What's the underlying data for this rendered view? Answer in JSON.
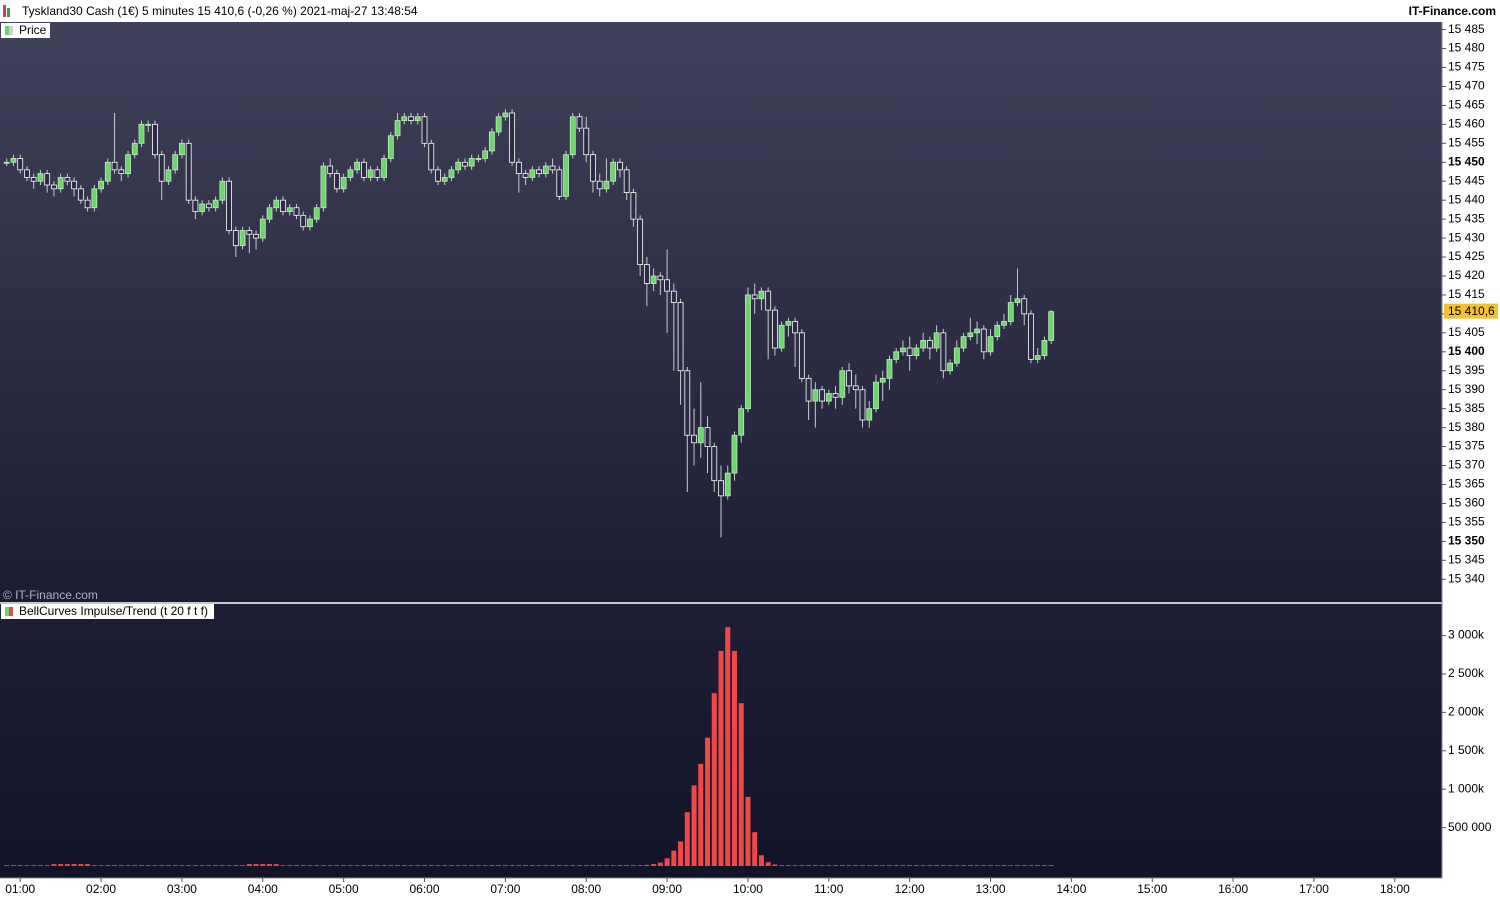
{
  "header": {
    "title": "Tyskland30 Cash (1€) 5 minutes 15 410,6 (-0,26 %) 2021-maj-27 13:48:54",
    "brand": "IT-Finance.com",
    "watermark": "© IT-Finance.com"
  },
  "chart_data": [
    {
      "type": "candlestick",
      "legend": "Price",
      "up_color": "#6fd36f",
      "down_color": "#ffffff",
      "wick_color": "#c8c8d2",
      "x": [
        50,
        55,
        60,
        65,
        70,
        75,
        80,
        85,
        90,
        95,
        100,
        105,
        110,
        115,
        120,
        125,
        130,
        135,
        140,
        145,
        150,
        155,
        160,
        165,
        170,
        175,
        180,
        185,
        190,
        195,
        200,
        205,
        210,
        215,
        220,
        225,
        230,
        235,
        240,
        245,
        250,
        255,
        260,
        265,
        270,
        275,
        280,
        285,
        290,
        295,
        300,
        305,
        310,
        315,
        320,
        325,
        330,
        335,
        340,
        345,
        350,
        355,
        360,
        365,
        370,
        375,
        380,
        385,
        390,
        395,
        400,
        405,
        410,
        415,
        420,
        425,
        430,
        435,
        440,
        445,
        450,
        455,
        460,
        465,
        470,
        475,
        480,
        485,
        490,
        495,
        500,
        505,
        510,
        515,
        520,
        525,
        530,
        535,
        540,
        545,
        550,
        555,
        560,
        565,
        570,
        575,
        580,
        585,
        590,
        595,
        600,
        605,
        610,
        615,
        620,
        625,
        630,
        635,
        640,
        645,
        650,
        655,
        660,
        665,
        670,
        675,
        680,
        685,
        690,
        695,
        700,
        705,
        710,
        715,
        720,
        725,
        730,
        735,
        740,
        745,
        750,
        755,
        760,
        765,
        770,
        775,
        780,
        785,
        790,
        795,
        800,
        805,
        810,
        815,
        820,
        825
      ],
      "open": [
        15450,
        15450,
        15451,
        15448,
        15446,
        15445,
        15447,
        15444,
        15443,
        15446,
        15445,
        15443,
        15440,
        15438,
        15443,
        15445,
        15450,
        15448,
        15447,
        15452,
        15455,
        15460,
        15460,
        15452,
        15445,
        15448,
        15452,
        15455,
        15440,
        15437,
        15439,
        15438,
        15440,
        15445,
        15432,
        15428,
        15432,
        15431,
        15430,
        15435,
        15438,
        15440,
        15437,
        15438,
        15436,
        15433,
        15435,
        15438,
        15449,
        15447,
        15443,
        15446,
        15448,
        15450,
        15446,
        15448,
        15446,
        15451,
        15457,
        15461,
        15462,
        15461,
        15462,
        15455,
        15448,
        15445,
        15446,
        15448,
        15450,
        15449,
        15451,
        15451,
        15453,
        15458,
        15462,
        15463,
        15450,
        15447,
        15446,
        15448,
        15447,
        15449,
        15448,
        15441,
        15452,
        15462,
        15459,
        15452,
        15445,
        15443,
        15445,
        15450,
        15448,
        15442,
        15435,
        15423,
        15418,
        15420,
        15419,
        15416,
        15413,
        15395,
        15378,
        15376,
        15380,
        15375,
        15366,
        15362,
        15368,
        15378,
        15385,
        15415,
        15414,
        15416,
        15411,
        15401,
        15407,
        15408,
        15405,
        15393,
        15387,
        15390,
        15387,
        15389,
        15388,
        15395,
        15391,
        15390,
        15382,
        15385,
        15392,
        15393,
        15398,
        15400,
        15401,
        15399,
        15401,
        15403,
        15401,
        15405,
        15395,
        15397,
        15401,
        15404,
        15405,
        15406,
        15400,
        15404,
        15407,
        15408,
        15413,
        15414,
        15410,
        15398,
        15399,
        15403
      ],
      "high": [
        15451,
        15452,
        15452,
        15449,
        15447,
        15448,
        15448,
        15445,
        15447,
        15447,
        15446,
        15444,
        15441,
        15444,
        15446,
        15451,
        15463,
        15449,
        15453,
        15456,
        15461,
        15461,
        15461,
        15453,
        15449,
        15453,
        15456,
        15456,
        15441,
        15440,
        15440,
        15441,
        15446,
        15446,
        15433,
        15433,
        15433,
        15432,
        15436,
        15439,
        15441,
        15441,
        15439,
        15439,
        15437,
        15436,
        15439,
        15450,
        15451,
        15448,
        15447,
        15449,
        15451,
        15451,
        15449,
        15449,
        15452,
        15458,
        15463,
        15463,
        15463,
        15463,
        15463,
        15456,
        15449,
        15447,
        15449,
        15451,
        15451,
        15452,
        15452,
        15454,
        15459,
        15463,
        15464,
        15464,
        15451,
        15448,
        15449,
        15449,
        15450,
        15451,
        15449,
        15453,
        15463,
        15463,
        15462,
        15453,
        15447,
        15451,
        15451,
        15451,
        15449,
        15443,
        15436,
        15425,
        15422,
        15421,
        15427,
        15418,
        15414,
        15396,
        15385,
        15392,
        15383,
        15376,
        15370,
        15370,
        15379,
        15386,
        15417,
        15418,
        15417,
        15417,
        15412,
        15408,
        15409,
        15409,
        15406,
        15394,
        15392,
        15391,
        15390,
        15391,
        15396,
        15397,
        15394,
        15391,
        15387,
        15394,
        15395,
        15399,
        15401,
        15403,
        15404,
        15402,
        15405,
        15404,
        15407,
        15406,
        15398,
        15403,
        15405,
        15409,
        15408,
        15407,
        15406,
        15408,
        15410,
        15415,
        15422,
        15415,
        15411,
        15401,
        15404,
        15411
      ],
      "low": [
        15449,
        15449,
        15447,
        15445,
        15443,
        15444,
        15442,
        15441,
        15442,
        15444,
        15441,
        15439,
        15437,
        15437,
        15442,
        15444,
        15447,
        15445,
        15446,
        15451,
        15454,
        15458,
        15451,
        15440,
        15444,
        15447,
        15451,
        15439,
        15435,
        15436,
        15437,
        15437,
        15439,
        15431,
        15425,
        15427,
        15426,
        15427,
        15429,
        15434,
        15437,
        15436,
        15436,
        15435,
        15432,
        15432,
        15434,
        15437,
        15446,
        15442,
        15442,
        15445,
        15447,
        15445,
        15445,
        15445,
        15445,
        15450,
        15456,
        15460,
        15460,
        15460,
        15454,
        15447,
        15444,
        15444,
        15445,
        15447,
        15448,
        15448,
        15450,
        15450,
        15452,
        15457,
        15461,
        15449,
        15442,
        15444,
        15445,
        15446,
        15446,
        15447,
        15440,
        15440,
        15451,
        15458,
        15450,
        15442,
        15441,
        15442,
        15444,
        15446,
        15440,
        15433,
        15420,
        15412,
        15416,
        15415,
        15405,
        15395,
        15386,
        15363,
        15370,
        15372,
        15368,
        15363,
        15351,
        15361,
        15366,
        15376,
        15384,
        15410,
        15411,
        15398,
        15399,
        15400,
        15404,
        15396,
        15392,
        15382,
        15380,
        15385,
        15386,
        15385,
        15386,
        15389,
        15385,
        15380,
        15380,
        15384,
        15387,
        15390,
        15397,
        15399,
        15395,
        15398,
        15400,
        15398,
        15400,
        15393,
        15394,
        15396,
        15400,
        15403,
        15402,
        15398,
        15399,
        15403,
        15406,
        15407,
        15412,
        15407,
        15397,
        15397,
        15398,
        15402
      ],
      "close": [
        15450,
        15451,
        15448,
        15446,
        15445,
        15447,
        15444,
        15443,
        15446,
        15445,
        15443,
        15440,
        15438,
        15443,
        15445,
        15450,
        15448,
        15447,
        15452,
        15455,
        15460,
        15460,
        15452,
        15445,
        15448,
        15452,
        15455,
        15440,
        15437,
        15439,
        15438,
        15440,
        15445,
        15432,
        15428,
        15432,
        15431,
        15430,
        15435,
        15438,
        15440,
        15437,
        15438,
        15436,
        15433,
        15435,
        15438,
        15449,
        15447,
        15443,
        15446,
        15448,
        15450,
        15446,
        15448,
        15446,
        15451,
        15457,
        15461,
        15462,
        15461,
        15462,
        15455,
        15448,
        15445,
        15446,
        15448,
        15450,
        15449,
        15451,
        15451,
        15453,
        15458,
        15462,
        15463,
        15450,
        15447,
        15446,
        15448,
        15447,
        15449,
        15448,
        15441,
        15452,
        15462,
        15459,
        15452,
        15445,
        15443,
        15445,
        15450,
        15448,
        15442,
        15435,
        15423,
        15418,
        15420,
        15419,
        15416,
        15413,
        15395,
        15378,
        15376,
        15380,
        15375,
        15366,
        15362,
        15368,
        15378,
        15385,
        15415,
        15414,
        15416,
        15411,
        15401,
        15407,
        15408,
        15405,
        15393,
        15387,
        15390,
        15387,
        15389,
        15388,
        15395,
        15391,
        15390,
        15382,
        15385,
        15392,
        15393,
        15398,
        15400,
        15401,
        15399,
        15401,
        15403,
        15401,
        15405,
        15395,
        15397,
        15401,
        15404,
        15405,
        15406,
        15400,
        15404,
        15407,
        15408,
        15413,
        15414,
        15410,
        15398,
        15399,
        15403,
        15410.6
      ],
      "current_price_label": "15 410,6",
      "xlim": [
        45,
        1115
      ],
      "xticks": [
        {
          "value": 60,
          "label": "01:00"
        },
        {
          "value": 120,
          "label": "02:00"
        },
        {
          "value": 180,
          "label": "03:00"
        },
        {
          "value": 240,
          "label": "04:00"
        },
        {
          "value": 300,
          "label": "05:00"
        },
        {
          "value": 360,
          "label": "06:00"
        },
        {
          "value": 420,
          "label": "07:00"
        },
        {
          "value": 480,
          "label": "08:00"
        },
        {
          "value": 540,
          "label": "09:00"
        },
        {
          "value": 600,
          "label": "10:00"
        },
        {
          "value": 660,
          "label": "11:00"
        },
        {
          "value": 720,
          "label": "12:00"
        },
        {
          "value": 780,
          "label": "13:00"
        },
        {
          "value": 840,
          "label": "14:00"
        },
        {
          "value": 900,
          "label": "15:00"
        },
        {
          "value": 960,
          "label": "16:00"
        },
        {
          "value": 1020,
          "label": "17:00"
        },
        {
          "value": 1080,
          "label": "18:00"
        }
      ],
      "ylim": [
        15334,
        15487
      ],
      "yticks": [
        {
          "value": 15485,
          "label": "15 485"
        },
        {
          "value": 15480,
          "label": "15 480"
        },
        {
          "value": 15475,
          "label": "15 475"
        },
        {
          "value": 15470,
          "label": "15 470"
        },
        {
          "value": 15465,
          "label": "15 465"
        },
        {
          "value": 15460,
          "label": "15 460"
        },
        {
          "value": 15455,
          "label": "15 455"
        },
        {
          "value": 15450,
          "label": "15 450"
        },
        {
          "value": 15445,
          "label": "15 445"
        },
        {
          "value": 15440,
          "label": "15 440"
        },
        {
          "value": 15435,
          "label": "15 435"
        },
        {
          "value": 15430,
          "label": "15 430"
        },
        {
          "value": 15425,
          "label": "15 425"
        },
        {
          "value": 15420,
          "label": "15 420"
        },
        {
          "value": 15415,
          "label": "15 415"
        },
        {
          "value": 15410,
          "label": "15 410"
        },
        {
          "value": 15405,
          "label": "15 405"
        },
        {
          "value": 15400,
          "label": "15 400"
        },
        {
          "value": 15395,
          "label": "15 395"
        },
        {
          "value": 15390,
          "label": "15 390"
        },
        {
          "value": 15385,
          "label": "15 385"
        },
        {
          "value": 15380,
          "label": "15 380"
        },
        {
          "value": 15375,
          "label": "15 375"
        },
        {
          "value": 15370,
          "label": "15 370"
        },
        {
          "value": 15365,
          "label": "15 365"
        },
        {
          "value": 15360,
          "label": "15 360"
        },
        {
          "value": 15355,
          "label": "15 355"
        },
        {
          "value": 15350,
          "label": "15 350"
        },
        {
          "value": 15345,
          "label": "15 345"
        },
        {
          "value": 15340,
          "label": "15 340"
        }
      ]
    },
    {
      "type": "bar",
      "legend": "BellCurves Impulse/Trend (t 20 f t f)",
      "color": "#f04848",
      "values": [
        10000,
        10000,
        10000,
        10000,
        10000,
        10000,
        10000,
        25000,
        25000,
        25000,
        25000,
        25000,
        25000,
        10000,
        10000,
        10000,
        10000,
        10000,
        10000,
        10000,
        10000,
        10000,
        10000,
        10000,
        10000,
        10000,
        10000,
        10000,
        10000,
        10000,
        10000,
        10000,
        10000,
        10000,
        10000,
        10000,
        25000,
        25000,
        25000,
        25000,
        25000,
        10000,
        10000,
        10000,
        10000,
        10000,
        10000,
        10000,
        10000,
        10000,
        10000,
        10000,
        10000,
        10000,
        10000,
        10000,
        10000,
        10000,
        10000,
        10000,
        10000,
        10000,
        10000,
        10000,
        10000,
        10000,
        10000,
        10000,
        10000,
        10000,
        10000,
        10000,
        10000,
        10000,
        10000,
        10000,
        10000,
        10000,
        10000,
        10000,
        10000,
        10000,
        10000,
        10000,
        10000,
        10000,
        10000,
        10000,
        10000,
        10000,
        10000,
        10000,
        10000,
        10000,
        10000,
        15000,
        25000,
        45000,
        100000,
        200000,
        320000,
        700000,
        1050000,
        1330000,
        1670000,
        2250000,
        2800000,
        3110000,
        2800000,
        2120000,
        900000,
        440000,
        140000,
        50000,
        20000,
        10000,
        10000,
        10000,
        10000,
        10000,
        10000,
        10000,
        10000,
        10000,
        10000,
        10000,
        10000,
        10000,
        10000,
        10000,
        10000,
        10000,
        10000,
        10000,
        10000,
        10000,
        10000,
        10000,
        10000,
        10000,
        10000,
        10000,
        10000,
        10000,
        10000,
        10000,
        10000,
        10000,
        10000,
        10000,
        10000,
        10000,
        10000,
        10000,
        10000,
        10000
      ],
      "ylim": [
        -156000,
        3411000
      ],
      "yticks": [
        {
          "value": 500000,
          "label": "500 000"
        },
        {
          "value": 1000000,
          "label": "1 000k"
        },
        {
          "value": 1500000,
          "label": "1 500k"
        },
        {
          "value": 2000000,
          "label": "2 000k"
        },
        {
          "value": 2500000,
          "label": "2 500k"
        },
        {
          "value": 3000000,
          "label": "3 000k"
        }
      ]
    }
  ]
}
